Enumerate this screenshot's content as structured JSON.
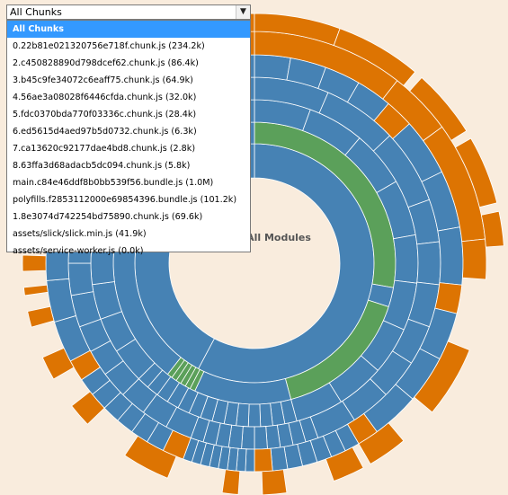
{
  "selector": {
    "value": "All Chunks",
    "options": [
      "All Chunks",
      "0.22b81e021320756e718f.chunk.js (234.2k)",
      "2.c450828890d798dcef62.chunk.js (86.4k)",
      "3.b45c9fe34072c6eaff75.chunk.js (64.9k)",
      "4.56ae3a08028f6446cfda.chunk.js (32.0k)",
      "5.fdc0370bda770f03336c.chunk.js (28.4k)",
      "6.ed5615d4aed97b5d0732.chunk.js (6.3k)",
      "7.ca13620c92177dae4bd8.chunk.js (2.8k)",
      "8.63ffa3d68adacb5dc094.chunk.js (5.8k)",
      "main.c84e46ddf8b0bb539f56.bundle.js (1.0M)",
      "polyfills.f2853112000e69854396.bundle.js (101.2k)",
      "1.8e3074d742254bd75890.chunk.js (69.6k)",
      "assets/slick/slick.min.js (41.9k)",
      "assets/service-worker.js (0.0k)"
    ]
  },
  "center_label": "All Modules",
  "colors": {
    "background": "#f9ecdd",
    "blue": "#4682b4",
    "green": "#5ba05a",
    "orange": "#dd7402",
    "stroke": "#ffffff",
    "selected": "#3399ff"
  },
  "icons": {
    "dropdown": "chevron-down-icon"
  }
}
